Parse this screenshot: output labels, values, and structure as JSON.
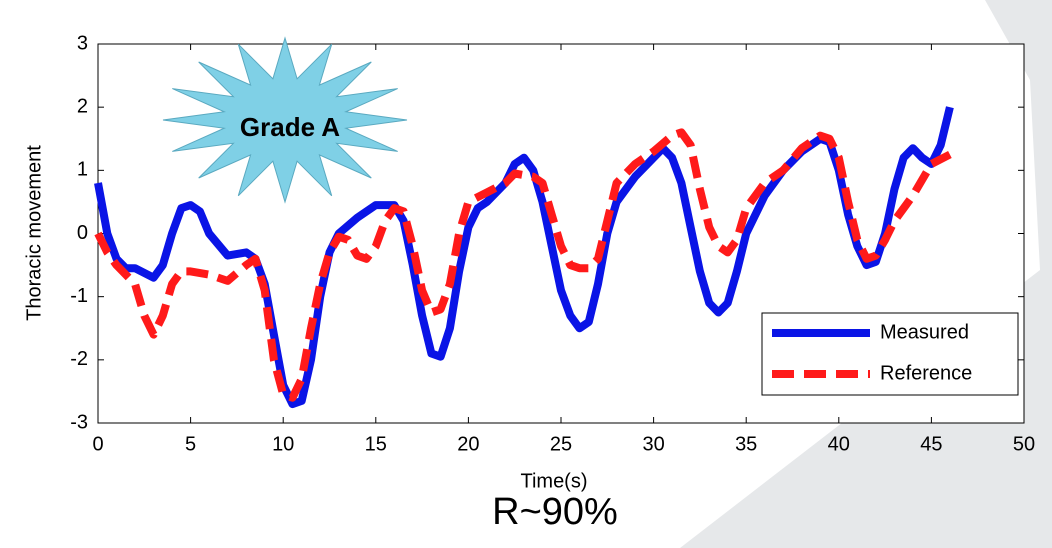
{
  "chart_data": {
    "type": "line",
    "xlabel": "Time(s)",
    "ylabel": "Thoracic movement",
    "annotations": [
      "Grade A",
      "R~90%"
    ],
    "xlim": [
      0,
      50
    ],
    "xticks": [
      0,
      5,
      10,
      15,
      20,
      25,
      30,
      35,
      40,
      45,
      50
    ],
    "ylim": [
      -3,
      3
    ],
    "yticks": [
      -3,
      -2,
      -1,
      0,
      1,
      2,
      3
    ],
    "legend": "lower right",
    "series": [
      {
        "name": "Measured",
        "color": "#0a14e6",
        "style": "solid",
        "x": [
          0,
          0.5,
          1,
          1.5,
          2,
          3,
          3.5,
          4,
          4.5,
          5,
          5.5,
          6,
          7,
          8,
          8.5,
          9,
          9.5,
          10,
          10.5,
          11,
          11.5,
          12,
          12.5,
          13,
          14,
          15,
          16,
          16.5,
          17,
          17.5,
          18,
          18.5,
          19,
          19.5,
          20,
          20.5,
          21,
          22,
          22.5,
          23,
          23.5,
          24,
          24.5,
          25,
          25.5,
          26,
          26.5,
          27,
          27.5,
          28,
          29,
          30,
          30.5,
          31,
          31.5,
          32,
          32.5,
          33,
          33.5,
          34,
          34.5,
          35,
          36,
          37,
          38,
          39,
          39.5,
          40,
          40.5,
          41,
          41.5,
          42,
          42.5,
          43,
          43.5,
          44,
          44.5,
          45,
          45.5,
          46
        ],
        "values": [
          0.8,
          0,
          -0.4,
          -0.55,
          -0.55,
          -0.7,
          -0.5,
          0,
          0.4,
          0.45,
          0.35,
          0,
          -0.35,
          -0.3,
          -0.4,
          -0.8,
          -1.6,
          -2.4,
          -2.7,
          -2.65,
          -2,
          -1,
          -0.3,
          0,
          0.25,
          0.45,
          0.45,
          0.2,
          -0.5,
          -1.3,
          -1.9,
          -1.95,
          -1.5,
          -0.6,
          0.1,
          0.4,
          0.5,
          0.8,
          1.1,
          1.2,
          1,
          0.5,
          -0.2,
          -0.9,
          -1.3,
          -1.5,
          -1.4,
          -0.8,
          0,
          0.5,
          0.9,
          1.2,
          1.35,
          1.2,
          0.8,
          0.1,
          -0.6,
          -1.1,
          -1.25,
          -1.1,
          -0.6,
          0,
          0.6,
          1,
          1.3,
          1.5,
          1.45,
          1,
          0.3,
          -0.2,
          -0.5,
          -0.45,
          0,
          0.7,
          1.2,
          1.35,
          1.2,
          1.1,
          1.4,
          2
        ]
      },
      {
        "name": "Reference",
        "color": "#ff1a1a",
        "style": "dashed",
        "x": [
          0,
          0.5,
          1,
          2,
          2.5,
          3,
          3.5,
          4,
          4.5,
          5,
          6,
          7,
          8,
          8.5,
          9,
          9.5,
          10,
          10.5,
          11,
          11.5,
          12,
          12.5,
          13,
          13.5,
          14,
          14.5,
          15,
          15.5,
          16,
          16.5,
          17,
          17.5,
          18,
          18.5,
          19,
          19.5,
          20,
          21,
          22,
          22.5,
          23.5,
          24,
          24.5,
          25,
          25.5,
          26,
          26.5,
          27,
          27.5,
          28,
          29,
          30,
          31,
          31.5,
          32,
          32.5,
          33,
          33.5,
          34,
          34.5,
          35,
          36,
          37,
          38,
          39,
          39.5,
          40,
          40.5,
          41,
          41.5,
          42,
          42.5,
          43,
          44,
          45,
          46
        ],
        "values": [
          0,
          -0.3,
          -0.5,
          -0.8,
          -1.3,
          -1.6,
          -1.3,
          -0.8,
          -0.6,
          -0.6,
          -0.65,
          -0.75,
          -0.5,
          -0.4,
          -0.9,
          -2,
          -2.55,
          -2.6,
          -2.3,
          -1.5,
          -0.8,
          -0.3,
          -0.05,
          -0.1,
          -0.35,
          -0.4,
          -0.2,
          0.2,
          0.4,
          0.35,
          -0.2,
          -0.9,
          -1.25,
          -1.2,
          -0.8,
          0,
          0.5,
          0.65,
          0.8,
          0.95,
          0.9,
          0.8,
          0.3,
          -0.2,
          -0.5,
          -0.55,
          -0.55,
          -0.4,
          0.2,
          0.8,
          1.1,
          1.3,
          1.55,
          1.6,
          1.4,
          0.7,
          0.1,
          -0.2,
          -0.3,
          -0.1,
          0.4,
          0.8,
          1,
          1.35,
          1.55,
          1.5,
          1.2,
          0.5,
          -0.1,
          -0.4,
          -0.35,
          -0.1,
          0.2,
          0.6,
          1.1,
          1.25
        ]
      }
    ]
  }
}
